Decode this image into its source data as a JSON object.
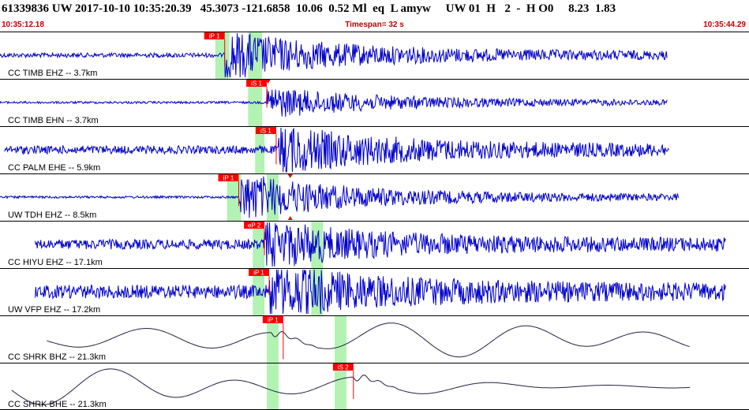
{
  "header": {
    "title": "61339836 UW 2017-10-10 10:35:20.39   45.3073 -121.6858  10.06  0.52 Ml  eq  L amyw     UW 01  H   2  -  H O0     8.23  1.83",
    "start_time": "10:35:12.18",
    "timespan": "Timespan=  32 s",
    "end_time": "10:35:44.29"
  },
  "colors": {
    "trace": "#0000cc",
    "lp_trace": "#222244",
    "pick": "#ff0000",
    "window": "#b2f2b2",
    "divider": "#000000"
  },
  "time": {
    "start": 0,
    "end": 32
  },
  "traces": [
    {
      "label": "CC TIMB EHZ -- 3.7km",
      "filter": "hp",
      "start": 0,
      "end": 28.5,
      "noise": 0.1,
      "amp": 0.85,
      "onset": 9.6,
      "windows": [
        [
          9.2,
          9.8
        ],
        [
          10.6,
          11.2
        ]
      ],
      "arrows": [],
      "picks": [
        {
          "label": "iP 1",
          "t": 9.6,
          "flag_dir": "left",
          "tick": 0.7
        }
      ]
    },
    {
      "label": "CC TIMB EHN -- 3.7km",
      "filter": "hp",
      "start": 0,
      "end": 28.5,
      "noise": 0.05,
      "amp": 0.55,
      "onset": 11.4,
      "windows": [
        [
          10.6,
          11.2
        ]
      ],
      "arrows": [
        {
          "t": 11.45,
          "dir": "down"
        }
      ],
      "picks": [
        {
          "label": "iS 1",
          "t": 11.4,
          "flag_dir": "left",
          "tick": 0.55
        }
      ]
    },
    {
      "label": "CC PALM EHE -- 5.9km",
      "filter": "hp",
      "start": 0.2,
      "end": 28.6,
      "noise": 0.18,
      "amp": 0.8,
      "onset": 11.9,
      "windows": [
        [
          10.9,
          11.3
        ]
      ],
      "arrows": [],
      "picks": [
        {
          "label": "iS 1",
          "t": 11.8,
          "flag_dir": "left",
          "tick": 0.8
        }
      ]
    },
    {
      "label": "UW TDH EHZ -- 8.5km",
      "filter": "hp",
      "start": 0,
      "end": 29.0,
      "noise": 0.05,
      "amp": 0.85,
      "onset": 10.2,
      "windows": [
        [
          9.7,
          10.3
        ],
        [
          11.4,
          11.9
        ]
      ],
      "arrows": [
        {
          "t": 12.4,
          "dir": "down"
        },
        {
          "t": 12.4,
          "dir": "up"
        }
      ],
      "picks": [
        {
          "label": "iP 1",
          "t": 10.2,
          "flag_dir": "left",
          "tick": 0.65
        }
      ]
    },
    {
      "label": "CC HIYU EHZ -- 17.1km",
      "filter": "hp",
      "start": 1.5,
      "end": 31.0,
      "noise": 0.22,
      "amp": 0.75,
      "onset": 11.3,
      "windows": [
        [
          10.8,
          11.3
        ],
        [
          13.3,
          13.8
        ]
      ],
      "arrows": [],
      "picks": [
        {
          "label": "eP 2",
          "t": 11.3,
          "flag_dir": "left",
          "tick": 0.7
        }
      ]
    },
    {
      "label": "UW VFP EHZ -- 17.2km",
      "filter": "hp",
      "start": 1.5,
      "end": 31.0,
      "noise": 0.3,
      "amp": 0.85,
      "onset": 11.5,
      "windows": [
        [
          10.8,
          11.3
        ],
        [
          13.3,
          13.8
        ]
      ],
      "arrows": [],
      "picks": [
        {
          "label": "iP 1",
          "t": 11.5,
          "flag_dir": "left",
          "tick": 0.5
        }
      ]
    },
    {
      "label": "CC SHRK BHZ -- 21.3km",
      "filter": "lp",
      "start": 2.0,
      "end": 29.5,
      "noise": 0,
      "amp": 0.9,
      "onset": 11.6,
      "windows": [
        [
          11.4,
          11.9
        ],
        [
          14.3,
          14.8
        ]
      ],
      "arrows": [],
      "picks": [
        {
          "label": "iP 1",
          "t": 12.1,
          "flag_dir": "left",
          "tick": 0.95
        }
      ]
    },
    {
      "label": "CC SHRK BHE -- 21.3km",
      "filter": "lp",
      "start": 0.5,
      "end": 29.5,
      "noise": 0,
      "amp": 0.95,
      "onset": 15.1,
      "windows": [
        [
          11.4,
          11.9
        ],
        [
          14.3,
          14.8
        ]
      ],
      "arrows": [],
      "picks": [
        {
          "label": "iS 2",
          "t": 15.1,
          "flag_dir": "left",
          "tick": 0.75
        }
      ]
    }
  ]
}
